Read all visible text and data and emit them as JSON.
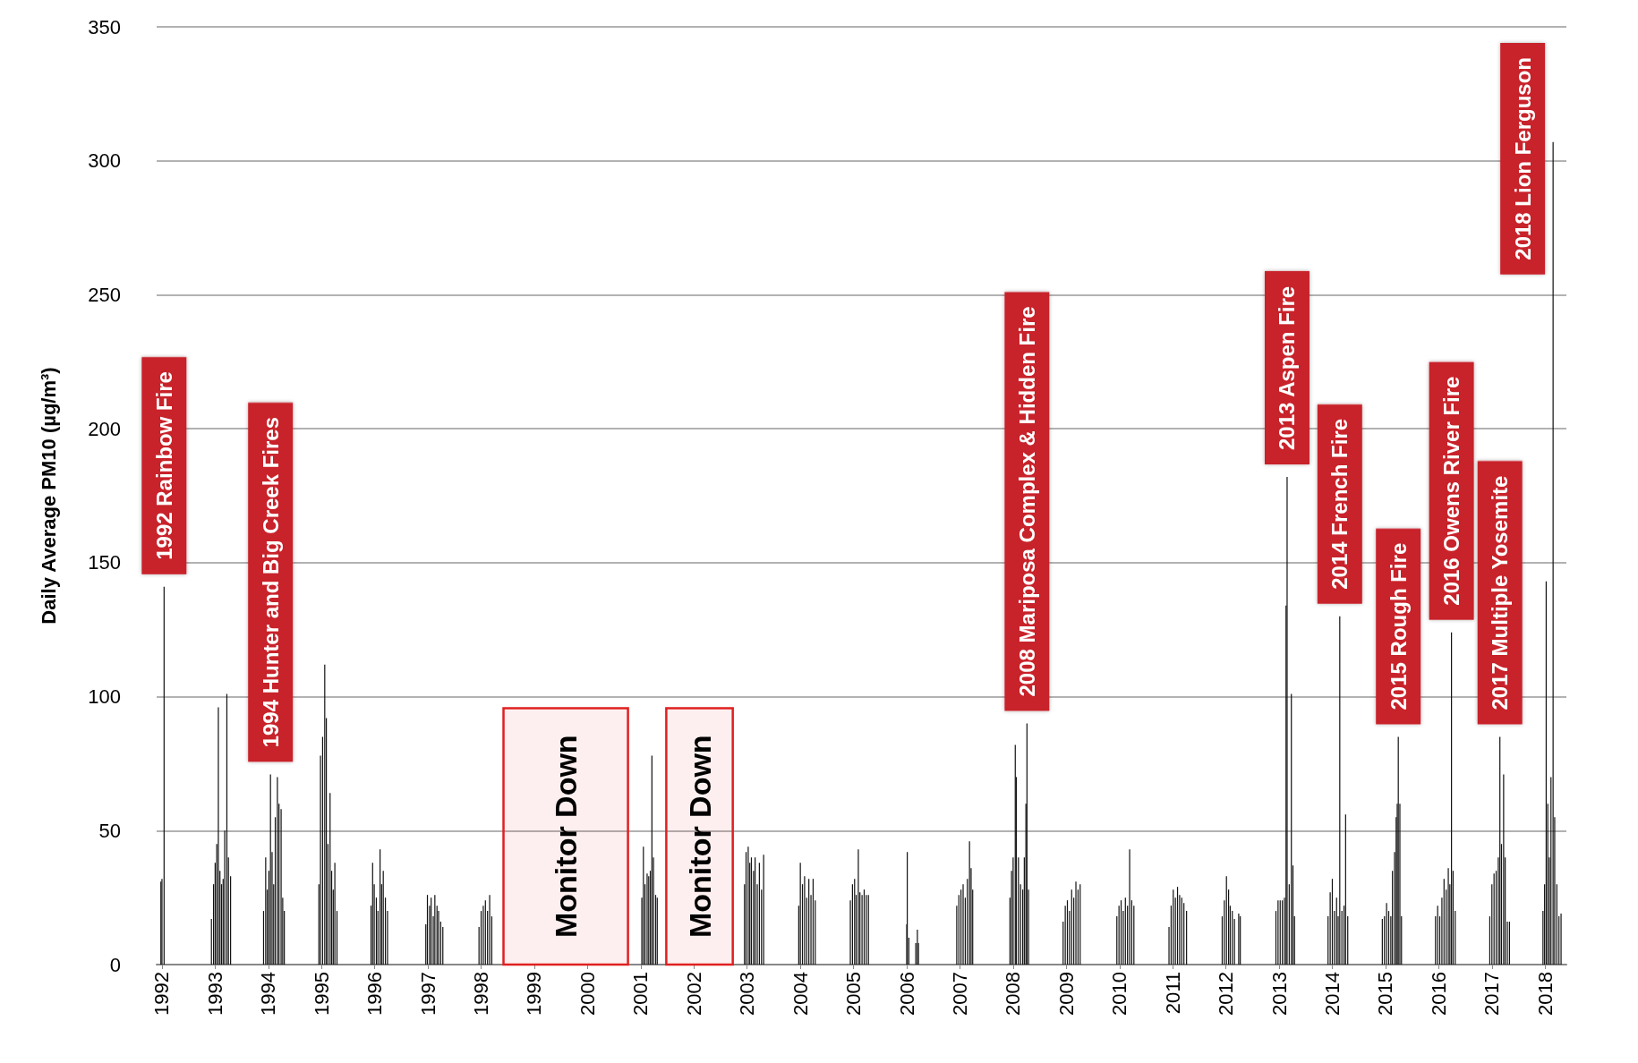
{
  "chart_data": {
    "type": "bar",
    "ylabel": "Daily Average PM10 (µg/m³)",
    "color": "#111111",
    "x": [
      1991.98,
      1992.0,
      1992.04,
      1992.93,
      1992.97,
      1993.0,
      1993.03,
      1993.06,
      1993.09,
      1993.12,
      1993.15,
      1993.18,
      1993.22,
      1993.25,
      1993.29,
      1993.91,
      1993.95,
      1993.98,
      1994.01,
      1994.04,
      1994.07,
      1994.1,
      1994.13,
      1994.17,
      1994.2,
      1994.24,
      1994.27,
      1994.3,
      1994.95,
      1994.98,
      1995.02,
      1995.06,
      1995.09,
      1995.12,
      1995.16,
      1995.19,
      1995.22,
      1995.25,
      1995.29,
      1995.93,
      1995.96,
      1995.99,
      1996.03,
      1996.06,
      1996.1,
      1996.13,
      1996.16,
      1996.2,
      1996.24,
      1996.96,
      1996.99,
      1997.03,
      1997.06,
      1997.1,
      1997.13,
      1997.17,
      1997.2,
      1997.24,
      1997.28,
      1997.96,
      1998.0,
      1998.04,
      1998.08,
      1998.12,
      1998.16,
      1998.2,
      2001.02,
      2001.05,
      2001.08,
      2001.12,
      2001.15,
      2001.18,
      2001.21,
      2001.24,
      2001.28,
      2001.31,
      2002.95,
      2002.98,
      2003.02,
      2003.05,
      2003.08,
      2003.12,
      2003.15,
      2003.19,
      2003.23,
      2003.27,
      2003.31,
      2003.97,
      2004.0,
      2004.04,
      2004.08,
      2004.12,
      2004.16,
      2004.2,
      2004.24,
      2004.28,
      2004.94,
      2004.98,
      2005.02,
      2005.05,
      2005.09,
      2005.12,
      2005.16,
      2005.2,
      2005.24,
      2005.28,
      2006.0,
      2006.01,
      2006.04,
      2006.17,
      2006.2,
      2006.22,
      2006.94,
      2006.98,
      2007.02,
      2007.06,
      2007.1,
      2007.14,
      2007.18,
      2007.21,
      2007.24,
      2007.94,
      2007.97,
      2008.0,
      2008.04,
      2008.06,
      2008.1,
      2008.14,
      2008.18,
      2008.21,
      2008.24,
      2008.26,
      2008.29,
      2008.94,
      2008.98,
      2009.02,
      2009.06,
      2009.1,
      2009.14,
      2009.18,
      2009.22,
      2009.26,
      2009.95,
      2009.99,
      2010.03,
      2010.07,
      2010.11,
      2010.15,
      2010.19,
      2010.23,
      2010.27,
      2010.93,
      2010.97,
      2011.01,
      2011.05,
      2011.09,
      2011.13,
      2011.17,
      2011.21,
      2011.26,
      2011.93,
      2011.97,
      2012.01,
      2012.05,
      2012.08,
      2012.12,
      2012.16,
      2012.24,
      2012.27,
      2012.94,
      2012.98,
      2013.02,
      2013.06,
      2013.1,
      2013.13,
      2013.15,
      2013.19,
      2013.23,
      2013.26,
      2013.29,
      2013.92,
      2013.96,
      2014.0,
      2014.04,
      2014.08,
      2014.11,
      2014.14,
      2014.18,
      2014.22,
      2014.25,
      2014.29,
      2014.94,
      2014.98,
      2015.02,
      2015.06,
      2015.1,
      2015.13,
      2015.17,
      2015.2,
      2015.22,
      2015.24,
      2015.27,
      2015.3,
      2015.94,
      2015.98,
      2016.02,
      2016.06,
      2016.1,
      2016.14,
      2016.18,
      2016.21,
      2016.24,
      2016.27,
      2016.31,
      2016.96,
      2017.0,
      2017.04,
      2017.08,
      2017.12,
      2017.15,
      2017.18,
      2017.22,
      2017.25,
      2017.29,
      2017.33,
      2017.96,
      2017.99,
      2018.02,
      2018.05,
      2018.08,
      2018.11,
      2018.15,
      2018.18,
      2018.22,
      2018.26,
      2018.3
    ],
    "values": [
      31,
      32,
      141,
      17,
      30,
      38,
      45,
      96,
      35,
      30,
      32,
      50,
      101,
      40,
      33,
      20,
      40,
      28,
      35,
      71,
      42,
      30,
      55,
      70,
      60,
      58,
      25,
      20,
      30,
      78,
      85,
      112,
      92,
      45,
      64,
      35,
      28,
      38,
      20,
      22,
      38,
      30,
      25,
      20,
      43,
      30,
      35,
      25,
      20,
      15,
      26,
      22,
      25,
      18,
      26,
      22,
      20,
      16,
      14,
      14,
      20,
      22,
      24,
      20,
      26,
      18,
      25,
      44,
      30,
      34,
      33,
      35,
      78,
      40,
      26,
      25,
      30,
      42,
      44,
      38,
      40,
      35,
      40,
      30,
      38,
      28,
      41,
      22,
      38,
      30,
      33,
      25,
      32,
      26,
      32,
      24,
      24,
      30,
      32,
      26,
      43,
      27,
      26,
      28,
      26,
      26,
      15,
      42,
      10,
      8,
      13,
      8,
      22,
      26,
      28,
      30,
      25,
      32,
      46,
      36,
      28,
      25,
      35,
      40,
      82,
      70,
      40,
      30,
      28,
      40,
      60,
      90,
      28,
      16,
      22,
      24,
      20,
      28,
      25,
      31,
      28,
      30,
      18,
      22,
      24,
      20,
      25,
      22,
      43,
      24,
      22,
      14,
      22,
      28,
      25,
      29,
      26,
      25,
      23,
      20,
      18,
      24,
      33,
      28,
      22,
      20,
      17,
      19,
      18,
      20,
      24,
      24,
      24,
      25,
      134,
      182,
      30,
      101,
      37,
      18,
      18,
      27,
      32,
      20,
      25,
      18,
      130,
      20,
      22,
      56,
      18,
      17,
      18,
      23,
      20,
      18,
      35,
      42,
      55,
      60,
      85,
      60,
      18,
      18,
      22,
      18,
      25,
      32,
      28,
      36,
      30,
      124,
      35,
      20,
      18,
      30,
      34,
      35,
      40,
      85,
      45,
      71,
      40,
      16,
      16,
      20,
      30,
      143,
      60,
      40,
      70,
      307,
      55,
      30,
      18,
      19
    ],
    "xlim": [
      1991.9,
      2018.4
    ],
    "xticks": [
      1992,
      1993,
      1994,
      1995,
      1996,
      1997,
      1998,
      1999,
      2000,
      2001,
      2002,
      2003,
      2004,
      2005,
      2006,
      2007,
      2008,
      2009,
      2010,
      2011,
      2012,
      2013,
      2014,
      2015,
      2016,
      2017,
      2018
    ],
    "ylim": [
      0,
      350
    ],
    "yticks": [
      0,
      50,
      100,
      150,
      200,
      250,
      300,
      350
    ],
    "grid": "y",
    "annotations": [
      {
        "text": "1992 Rainbow Fire",
        "x": 1992.04,
        "y": 141
      },
      {
        "text": "1994 Hunter and Big Creek Fires",
        "x": 1994.04,
        "y": 71
      },
      {
        "text": "2008 Mariposa Complex & Hidden Fire",
        "x": 2008.26,
        "y": 90
      },
      {
        "text": "2013 Aspen Fire",
        "x": 2013.15,
        "y": 182
      },
      {
        "text": "2014 French Fire",
        "x": 2014.14,
        "y": 130
      },
      {
        "text": "2015 Rough Fire",
        "x": 2015.24,
        "y": 85
      },
      {
        "text": "2016 Owens River Fire",
        "x": 2016.24,
        "y": 124
      },
      {
        "text": "2017 Multiple Yosemite",
        "x": 2017.15,
        "y": 85
      },
      {
        "text": "2018 Lion Ferguson",
        "x": 2018.15,
        "y": 307
      }
    ],
    "bands": [
      {
        "axis": "x",
        "from": 1998.42,
        "to": 2000.76,
        "label": "Monitor Down",
        "color": "#e02020"
      },
      {
        "axis": "x",
        "from": 2001.48,
        "to": 2002.73,
        "label": "Monitor Down",
        "color": "#e02020"
      }
    ]
  }
}
